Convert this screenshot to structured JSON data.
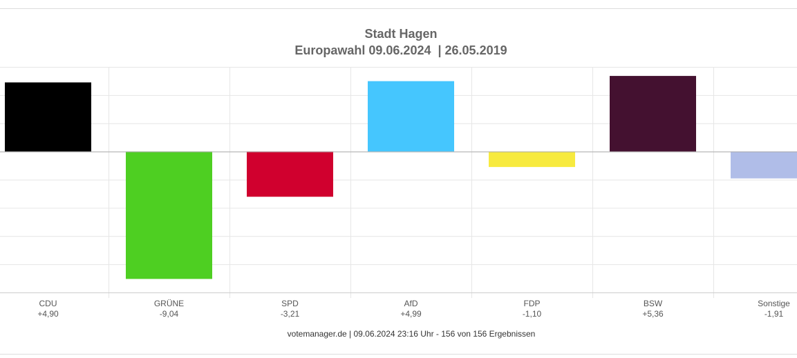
{
  "chart_data": {
    "type": "bar",
    "title": "Stadt Hagen",
    "subtitle": "Europawahl 09.06.2024  | 26.05.2019",
    "categories": [
      "CDU",
      "GRÜNE",
      "SPD",
      "AfD",
      "FDP",
      "BSW",
      "Sonstige"
    ],
    "value_labels": [
      "+4,90",
      "-9,04",
      "-3,21",
      "+4,99",
      "-1,10",
      "+5,36",
      "-1,91"
    ],
    "values": [
      4.9,
      -9.04,
      -3.21,
      4.99,
      -1.1,
      5.36,
      -1.91
    ],
    "colors": [
      "#000000",
      "#4ecf22",
      "#d0002e",
      "#45c6fe",
      "#f7ea3f",
      "#441130",
      "#b0bde8"
    ],
    "ylim": [
      -10,
      6
    ],
    "grid": true,
    "xlabel": "",
    "ylabel": ""
  },
  "footer": "votemanager.de | 09.06.2024 23:16 Uhr - 156 von 156 Ergebnissen"
}
